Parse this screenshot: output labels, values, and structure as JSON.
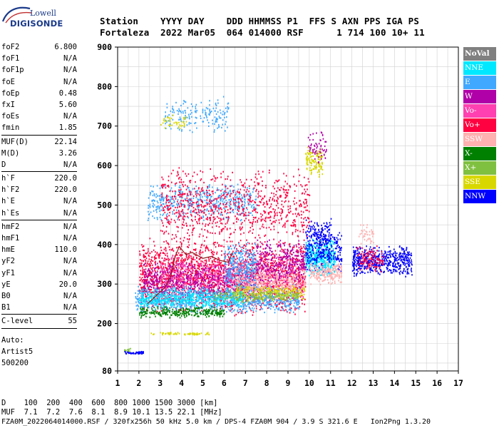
{
  "logo": {
    "line1": "Lowell",
    "line2": "DIGISONDE"
  },
  "header": {
    "labels": "Station    YYYY DAY    DDD HHMMSS P1  FFS S AXN PPS IGA PS",
    "values": "Fortaleza  2022 Mar05  064 014000 RSF      1 714 100 10+ 11"
  },
  "params_group1": [
    {
      "k": "foF2",
      "v": "6.800"
    },
    {
      "k": "foF1",
      "v": "N/A"
    },
    {
      "k": "foF1p",
      "v": "N/A"
    },
    {
      "k": "foE",
      "v": "N/A"
    },
    {
      "k": "foEp",
      "v": "0.48"
    },
    {
      "k": "fxI",
      "v": "5.60"
    },
    {
      "k": "foEs",
      "v": "N/A"
    },
    {
      "k": "fmin",
      "v": "1.85"
    }
  ],
  "params_group2": [
    {
      "k": "MUF(D)",
      "v": "22.14"
    },
    {
      "k": "M(D)",
      "v": "3.26"
    },
    {
      "k": "D",
      "v": "N/A"
    }
  ],
  "params_group3": [
    {
      "k": "h`F",
      "v": "220.0"
    },
    {
      "k": "h`F2",
      "v": "220.0"
    },
    {
      "k": "h`E",
      "v": "N/A"
    },
    {
      "k": "h`Es",
      "v": "N/A"
    }
  ],
  "params_group4": [
    {
      "k": "hmF2",
      "v": "N/A"
    },
    {
      "k": "hmF1",
      "v": "N/A"
    },
    {
      "k": "hmE",
      "v": "110.0"
    },
    {
      "k": "yF2",
      "v": "N/A"
    },
    {
      "k": "yF1",
      "v": "N/A"
    },
    {
      "k": "yE",
      "v": "20.0"
    },
    {
      "k": "B0",
      "v": "N/A"
    },
    {
      "k": "B1",
      "v": "N/A"
    }
  ],
  "params_group5": [
    {
      "k": "C-level",
      "v": "55"
    }
  ],
  "auto": {
    "l1": "Auto:",
    "l2": "Artist5",
    "l3": "500200"
  },
  "bottom": {
    "d_line": "D    100  200  400  600  800 1000 1500 3000 [km]",
    "muf_line": "MUF  7.1  7.2  7.6  8.1  8.9 10.1 13.5 22.1 [MHz]",
    "footer": "FZA0M_2022064014000.RSF / 320fx256h 50 kHz 5.0 km / DPS-4 FZA0M 904 / 3.9 S 321.6 E   Ion2Png 1.3.20"
  },
  "legend": [
    {
      "name": "NoVal",
      "color": "#808080"
    },
    {
      "name": "NNE",
      "color": "#00e8ff"
    },
    {
      "name": "E",
      "color": "#40a8ff"
    },
    {
      "name": "W",
      "color": "#b000a8"
    },
    {
      "name": "Vo-",
      "color": "#ff40b0"
    },
    {
      "name": "Vo+",
      "color": "#ff0040"
    },
    {
      "name": "SSW",
      "color": "#ffb0b0"
    },
    {
      "name": "X-",
      "color": "#008000"
    },
    {
      "name": "X+",
      "color": "#80c040"
    },
    {
      "name": "SSE",
      "color": "#d8d800"
    },
    {
      "name": "NNW",
      "color": "#0000ff"
    }
  ],
  "chart_data": {
    "type": "scatter",
    "xlim": [
      1,
      17
    ],
    "ylim": [
      80,
      900
    ],
    "x_ticks": [
      1,
      2,
      3,
      4,
      5,
      6,
      7,
      8,
      9,
      10,
      11,
      12,
      13,
      14,
      15,
      16,
      17
    ],
    "y_ticks": [
      80,
      200,
      300,
      400,
      500,
      600,
      700,
      800,
      900
    ],
    "grid": true,
    "legend_position": "right",
    "clusters": [
      {
        "series": "E",
        "x": [
          3.2,
          6.2
        ],
        "y": [
          680,
          780
        ],
        "density": 180
      },
      {
        "series": "SSE",
        "x": [
          3.0,
          4.2
        ],
        "y": [
          690,
          730
        ],
        "density": 40
      },
      {
        "series": "E",
        "x": [
          2.4,
          7.5
        ],
        "y": [
          460,
          560
        ],
        "density": 500
      },
      {
        "series": "SSE",
        "x": [
          9.8,
          10.6
        ],
        "y": [
          570,
          650
        ],
        "density": 120
      },
      {
        "series": "W",
        "x": [
          9.9,
          10.8
        ],
        "y": [
          600,
          690
        ],
        "density": 60
      },
      {
        "series": "Vo+",
        "x": [
          2.0,
          9.8
        ],
        "y": [
          220,
          420
        ],
        "density": 2200
      },
      {
        "series": "W",
        "x": [
          2.2,
          7.5
        ],
        "y": [
          260,
          360
        ],
        "density": 700
      },
      {
        "series": "Vo-",
        "x": [
          3.0,
          9.8
        ],
        "y": [
          260,
          380
        ],
        "density": 600
      },
      {
        "series": "E",
        "x": [
          1.8,
          9.5
        ],
        "y": [
          225,
          300
        ],
        "density": 900
      },
      {
        "series": "NNE",
        "x": [
          2.0,
          7.0
        ],
        "y": [
          240,
          290
        ],
        "density": 500
      },
      {
        "series": "X-",
        "x": [
          2.0,
          6.0
        ],
        "y": [
          215,
          245
        ],
        "density": 300
      },
      {
        "series": "SSW",
        "x": [
          6.5,
          9.8
        ],
        "y": [
          270,
          350
        ],
        "density": 400
      },
      {
        "series": "SSE",
        "x": [
          6.5,
          9.8
        ],
        "y": [
          260,
          300
        ],
        "density": 250
      },
      {
        "series": "X+",
        "x": [
          5.5,
          9.5
        ],
        "y": [
          255,
          290
        ],
        "density": 150
      },
      {
        "series": "NNE",
        "x": [
          9.8,
          11.2
        ],
        "y": [
          320,
          420
        ],
        "density": 450
      },
      {
        "series": "NNW",
        "x": [
          9.8,
          11.5
        ],
        "y": [
          330,
          440
        ],
        "density": 250
      },
      {
        "series": "SSW",
        "x": [
          10.0,
          11.5
        ],
        "y": [
          300,
          360
        ],
        "density": 200
      },
      {
        "series": "NNW",
        "x": [
          12.0,
          14.8
        ],
        "y": [
          320,
          400
        ],
        "density": 500
      },
      {
        "series": "Vo+",
        "x": [
          12.2,
          13.5
        ],
        "y": [
          330,
          400
        ],
        "density": 120
      },
      {
        "series": "SSW",
        "x": [
          12.3,
          13.0
        ],
        "y": [
          400,
          460
        ],
        "density": 40
      },
      {
        "series": "Vo+",
        "x": [
          3.0,
          10.0
        ],
        "y": [
          400,
          600
        ],
        "density": 900
      },
      {
        "series": "NNW",
        "x": [
          9.8,
          11.0
        ],
        "y": [
          390,
          470
        ],
        "density": 120
      },
      {
        "series": "SSE",
        "x": [
          2.5,
          5.3
        ],
        "y": [
          172,
          180
        ],
        "density": 60
      },
      {
        "series": "NNW",
        "x": [
          1.3,
          2.2
        ],
        "y": [
          124,
          132
        ],
        "density": 50
      },
      {
        "series": "X+",
        "x": [
          1.3,
          1.6
        ],
        "y": [
          130,
          140
        ],
        "density": 12
      },
      {
        "series": "E",
        "x": [
          6.0,
          7.5
        ],
        "y": [
          280,
          410
        ],
        "density": 300
      },
      {
        "series": "W",
        "x": [
          7.5,
          9.8
        ],
        "y": [
          300,
          420
        ],
        "density": 300
      }
    ],
    "trace": {
      "color": "#8b1a1a",
      "x": [
        2.4,
        2.8,
        3.2,
        3.5,
        3.7,
        3.9,
        4.2,
        4.5,
        5.0,
        5.4,
        5.8,
        6.2,
        6.4
      ],
      "y": [
        250,
        270,
        290,
        320,
        370,
        395,
        375,
        380,
        365,
        370,
        360,
        355,
        380
      ]
    }
  }
}
